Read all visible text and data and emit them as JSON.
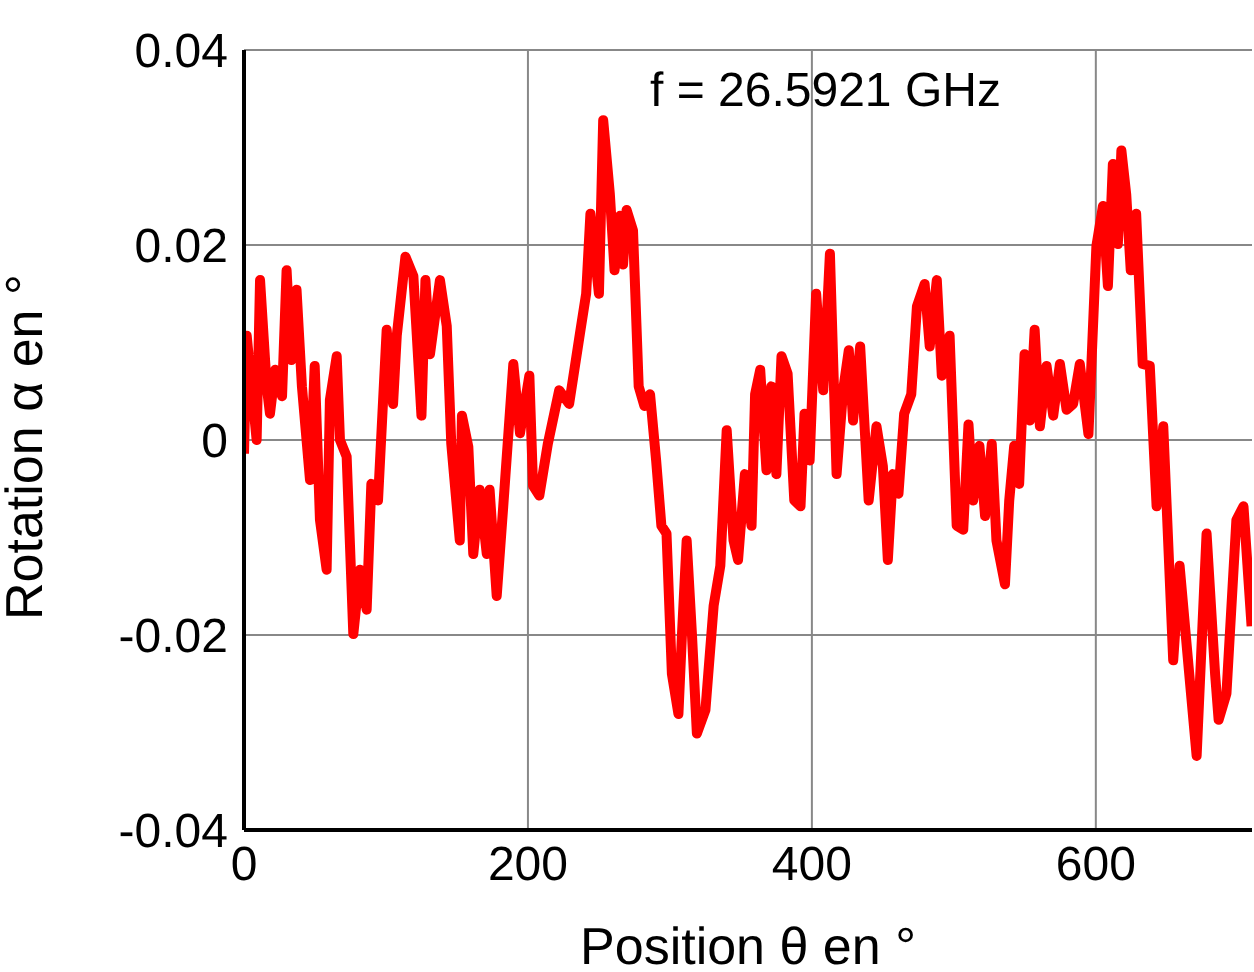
{
  "chart_data": {
    "type": "line",
    "xlabel": "Position θ en °",
    "ylabel": "Rotation α en °",
    "annotations": [
      "f = 26.5921 GHz"
    ],
    "xlim": [
      0,
      710
    ],
    "xticks": [
      0,
      200,
      400,
      600
    ],
    "ylim": [
      -0.04,
      0.04
    ],
    "yticks": [
      -0.04,
      -0.02,
      0,
      0.02,
      0.04
    ],
    "grid": true,
    "legend": false,
    "marker": "none",
    "line_style": "solid",
    "series": [
      {
        "color": "#ff0000",
        "x": [
          0,
          1.9,
          8.9,
          11.3,
          16,
          18.3,
          22,
          26.8,
          30,
          33.3,
          37,
          40.8,
          46.5,
          49.8,
          53.5,
          58.2,
          60.5,
          65.3,
          67.6,
          72.3,
          77,
          81.7,
          86.4,
          89.7,
          94.4,
          100.5,
          105,
          107.6,
          113.7,
          119.3,
          125,
          127.8,
          131,
          138,
          142.8,
          146,
          152,
          153.5,
          158,
          161.5,
          166,
          171,
          173,
          178,
          182.6,
          189.7,
          194.4,
          201,
          203.6,
          208,
          214,
          222,
          229,
          236.6,
          241,
          244,
          250,
          253,
          257.7,
          261,
          264.8,
          267,
          269.5,
          274,
          278,
          282,
          286,
          290.3,
          294,
          297.6,
          301.4,
          306,
          308.5,
          311.8,
          315.5,
          319,
          325,
          330.8,
          335.5,
          340,
          344.8,
          348,
          352.8,
          357.5,
          360,
          363.6,
          368,
          371.4,
          375,
          378.6,
          382.9,
          387.6,
          392,
          394.8,
          398.4,
          403,
          408,
          412.7,
          417.4,
          422,
          426,
          429,
          434,
          440,
          445.5,
          450,
          453.5,
          457,
          461,
          465,
          470,
          474,
          479.4,
          483,
          488,
          491.5,
          497,
          502,
          506.6,
          510.3,
          513.6,
          518,
          522,
          526.7,
          530,
          536,
          539,
          542.5,
          546,
          549.8,
          553.5,
          556.9,
          560.6,
          565.3,
          570,
          574.7,
          579.4,
          584,
          588.7,
          594.8,
          600.4,
          605,
          608.5,
          612,
          615.5,
          618,
          621.4,
          624.6,
          628.4,
          633,
          638,
          642.8,
          647.5,
          654.5,
          659,
          665.3,
          671,
          678,
          684,
          686.5,
          692,
          699,
          704,
          709.7
        ],
        "values": [
          -0.0014,
          0.0107,
          0,
          0.0164,
          0.0055,
          0.0027,
          0.0072,
          0.0045,
          0.0174,
          0.0082,
          0.0154,
          0.0055,
          -0.0041,
          0.0076,
          -0.0082,
          -0.0133,
          0.0041,
          0.0086,
          0,
          -0.0017,
          -0.0199,
          -0.0133,
          -0.0174,
          -0.0045,
          -0.0062,
          0.0113,
          0.0037,
          0.0107,
          0.0188,
          0.0168,
          0.0025,
          0.0164,
          0.0088,
          0.0164,
          0.0117,
          -0.0004,
          -0.0103,
          0.0025,
          -0.0007,
          -0.0117,
          -0.0051,
          -0.0117,
          -0.0051,
          -0.016,
          -0.0068,
          0.0078,
          0.0007,
          0.0066,
          -0.0047,
          -0.0057,
          -0.0004,
          0.0051,
          0.0037,
          0.0109,
          0.015,
          0.0232,
          0.015,
          0.0328,
          0.0252,
          0.0174,
          0.023,
          0.018,
          0.0236,
          0.0215,
          0.0055,
          0.0035,
          0.0047,
          -0.0021,
          -0.0088,
          -0.0096,
          -0.024,
          -0.0281,
          -0.0199,
          -0.0103,
          -0.0199,
          -0.0301,
          -0.0277,
          -0.017,
          -0.0129,
          0.001,
          -0.0103,
          -0.0123,
          -0.0035,
          -0.0088,
          0.0047,
          0.0072,
          -0.0031,
          0.0055,
          -0.0035,
          0.0086,
          0.0068,
          -0.0062,
          -0.0068,
          0.0027,
          -0.0021,
          0.015,
          0.0051,
          0.0191,
          -0.0035,
          0.0051,
          0.0092,
          0.002,
          0.0096,
          -0.0062,
          0.0014,
          -0.0027,
          -0.0123,
          -0.0035,
          -0.0055,
          0.0027,
          0.0047,
          0.0137,
          0.016,
          0.0096,
          0.0164,
          0.0066,
          0.0107,
          -0.0088,
          -0.0092,
          0.0016,
          -0.0062,
          -0.0006,
          -0.0078,
          -0.0004,
          -0.0103,
          -0.0148,
          -0.0062,
          -0.0006,
          -0.0045,
          0.0088,
          0.002,
          0.0113,
          0.0014,
          0.0076,
          0.0025,
          0.0078,
          0.0031,
          0.0037,
          0.0078,
          0.0006,
          0.0199,
          0.024,
          0.0158,
          0.0283,
          0.0201,
          0.0297,
          0.0252,
          0.0174,
          0.0232,
          0.0078,
          0.0076,
          -0.0068,
          0.0014,
          -0.0226,
          -0.0129,
          -0.0232,
          -0.0324,
          -0.0096,
          -0.024,
          -0.0287,
          -0.026,
          -0.0082,
          -0.0068,
          -0.0191
        ]
      }
    ]
  }
}
